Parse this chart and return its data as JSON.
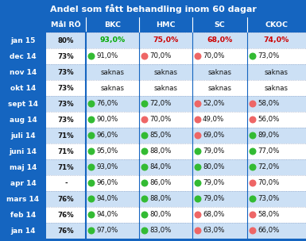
{
  "title": "Andel som fått behandling inom 60 dagar",
  "col_headers": [
    "Mål RÖ",
    "BKC",
    "HMC",
    "SC",
    "CKOC"
  ],
  "rows": [
    {
      "label": "jan 15",
      "mal": "80%",
      "data": [
        {
          "text": "93,0%",
          "dot": null,
          "color": "#00aa00"
        },
        {
          "text": "75,0%",
          "dot": null,
          "color": "#cc0000"
        },
        {
          "text": "68,0%",
          "dot": null,
          "color": "#cc0000"
        },
        {
          "text": "74,0%",
          "dot": null,
          "color": "#cc0000"
        }
      ]
    },
    {
      "label": "dec 14",
      "mal": "73%",
      "data": [
        {
          "text": "91,0%",
          "dot": "green",
          "color": "#111111"
        },
        {
          "text": "70,0%",
          "dot": "red",
          "color": "#111111"
        },
        {
          "text": "70,0%",
          "dot": "red",
          "color": "#111111"
        },
        {
          "text": "73,0%",
          "dot": "green",
          "color": "#111111"
        }
      ]
    },
    {
      "label": "nov 14",
      "mal": "73%",
      "data": [
        {
          "text": "saknas",
          "dot": null,
          "color": "#111111"
        },
        {
          "text": "saknas",
          "dot": null,
          "color": "#111111"
        },
        {
          "text": "saknas",
          "dot": null,
          "color": "#111111"
        },
        {
          "text": "saknas",
          "dot": null,
          "color": "#111111"
        }
      ]
    },
    {
      "label": "okt 14",
      "mal": "73%",
      "data": [
        {
          "text": "saknas",
          "dot": null,
          "color": "#111111"
        },
        {
          "text": "saknas",
          "dot": null,
          "color": "#111111"
        },
        {
          "text": "saknas",
          "dot": null,
          "color": "#111111"
        },
        {
          "text": "saknas",
          "dot": null,
          "color": "#111111"
        }
      ]
    },
    {
      "label": "sept 14",
      "mal": "73%",
      "data": [
        {
          "text": "76,0%",
          "dot": "green",
          "color": "#111111"
        },
        {
          "text": "72,0%",
          "dot": "green",
          "color": "#111111"
        },
        {
          "text": "52,0%",
          "dot": "red",
          "color": "#111111"
        },
        {
          "text": "58,0%",
          "dot": "red",
          "color": "#111111"
        }
      ]
    },
    {
      "label": "aug 14",
      "mal": "73%",
      "data": [
        {
          "text": "90,0%",
          "dot": "green",
          "color": "#111111"
        },
        {
          "text": "70,0%",
          "dot": "red",
          "color": "#111111"
        },
        {
          "text": "49,0%",
          "dot": "red",
          "color": "#111111"
        },
        {
          "text": "56,0%",
          "dot": "red",
          "color": "#111111"
        }
      ]
    },
    {
      "label": "juli 14",
      "mal": "71%",
      "data": [
        {
          "text": "96,0%",
          "dot": "green",
          "color": "#111111"
        },
        {
          "text": "85,0%",
          "dot": "green",
          "color": "#111111"
        },
        {
          "text": "69,0%",
          "dot": "red",
          "color": "#111111"
        },
        {
          "text": "89,0%",
          "dot": "green",
          "color": "#111111"
        }
      ]
    },
    {
      "label": "juni 14",
      "mal": "71%",
      "data": [
        {
          "text": "95,0%",
          "dot": "green",
          "color": "#111111"
        },
        {
          "text": "88,0%",
          "dot": "green",
          "color": "#111111"
        },
        {
          "text": "79,0%",
          "dot": "green",
          "color": "#111111"
        },
        {
          "text": "77,0%",
          "dot": "green",
          "color": "#111111"
        }
      ]
    },
    {
      "label": "maj 14",
      "mal": "71%",
      "data": [
        {
          "text": "93,0%",
          "dot": "green",
          "color": "#111111"
        },
        {
          "text": "84,0%",
          "dot": "green",
          "color": "#111111"
        },
        {
          "text": "80,0%",
          "dot": "green",
          "color": "#111111"
        },
        {
          "text": "72,0%",
          "dot": "green",
          "color": "#111111"
        }
      ]
    },
    {
      "label": "apr 14",
      "mal": "-",
      "data": [
        {
          "text": "96,0%",
          "dot": "green",
          "color": "#111111"
        },
        {
          "text": "86,0%",
          "dot": "green",
          "color": "#111111"
        },
        {
          "text": "79,0%",
          "dot": "green",
          "color": "#111111"
        },
        {
          "text": "70,0%",
          "dot": "red",
          "color": "#111111"
        }
      ]
    },
    {
      "label": "mars 14",
      "mal": "76%",
      "data": [
        {
          "text": "94,0%",
          "dot": "green",
          "color": "#111111"
        },
        {
          "text": "88,0%",
          "dot": "green",
          "color": "#111111"
        },
        {
          "text": "79,0%",
          "dot": "green",
          "color": "#111111"
        },
        {
          "text": "73,0%",
          "dot": "green",
          "color": "#111111"
        }
      ]
    },
    {
      "label": "feb 14",
      "mal": "76%",
      "data": [
        {
          "text": "94,0%",
          "dot": "green",
          "color": "#111111"
        },
        {
          "text": "80,0%",
          "dot": "green",
          "color": "#111111"
        },
        {
          "text": "68,0%",
          "dot": "red",
          "color": "#111111"
        },
        {
          "text": "58,0%",
          "dot": "red",
          "color": "#111111"
        }
      ]
    },
    {
      "label": "jan 14",
      "mal": "76%",
      "data": [
        {
          "text": "97,0%",
          "dot": "green",
          "color": "#111111"
        },
        {
          "text": "83,0%",
          "dot": "green",
          "color": "#111111"
        },
        {
          "text": "63,0%",
          "dot": "red",
          "color": "#111111"
        },
        {
          "text": "66,0%",
          "dot": "red",
          "color": "#111111"
        }
      ]
    }
  ],
  "blue_bg": "#1565c0",
  "row_bg_light": "#cce0f5",
  "row_bg_white": "#ffffff",
  "dot_green": "#33bb33",
  "dot_red": "#ee6666",
  "white": "#ffffff",
  "black": "#111111",
  "title_fontsize": 8.0,
  "header_fontsize": 6.8,
  "label_fontsize": 6.5,
  "cell_fontsize": 6.2
}
